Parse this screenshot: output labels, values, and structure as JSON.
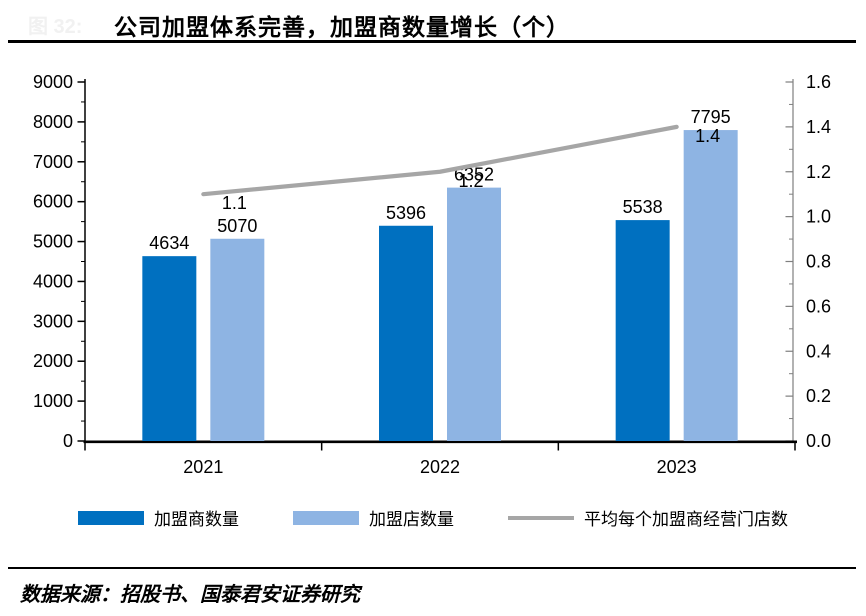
{
  "figure": {
    "figure_label": "图 32:",
    "title": "公司加盟体系完善，加盟商数量增长（个）",
    "source": "数据来源：招股书、国泰君安证券研究"
  },
  "chart_data": {
    "type": "bar",
    "subtype": "grouped-bars-with-line-overlay",
    "categories": [
      "2021",
      "2022",
      "2023"
    ],
    "series": [
      {
        "name": "加盟商数量",
        "type": "bar",
        "axis": "left",
        "color": "#0070C0",
        "values": [
          4634,
          5396,
          5538
        ]
      },
      {
        "name": "加盟店数量",
        "type": "bar",
        "axis": "left",
        "color": "#8EB4E3",
        "values": [
          5070,
          6352,
          7795
        ]
      },
      {
        "name": "平均每个加盟商经营门店数",
        "type": "line",
        "axis": "right",
        "color": "#A6A6A6",
        "values": [
          1.1,
          1.2,
          1.4
        ]
      }
    ],
    "left_axis": {
      "min": 0,
      "max": 9000,
      "step": 1000,
      "minor_step": 500,
      "tick_labels": [
        "0",
        "1000",
        "2000",
        "3000",
        "4000",
        "5000",
        "6000",
        "7000",
        "8000",
        "9000"
      ]
    },
    "right_axis": {
      "min": 0.0,
      "max": 1.6,
      "step": 0.2,
      "minor_step": 0.1,
      "tick_labels": [
        "0.0",
        "0.2",
        "0.4",
        "0.6",
        "0.8",
        "1.0",
        "1.2",
        "1.4",
        "1.6"
      ]
    },
    "legend_position": "bottom",
    "grid": false,
    "data_labels": true,
    "colors": {
      "axis": "#000000",
      "right_axis_line": "#7F7F7F",
      "text": "#000000"
    }
  }
}
